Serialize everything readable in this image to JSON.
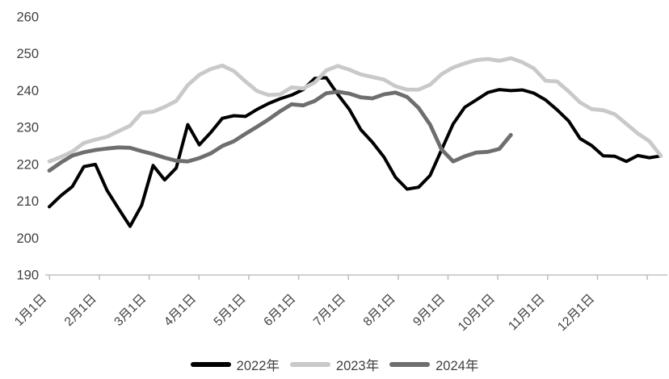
{
  "chart_data": {
    "type": "line",
    "title": "",
    "grid": false,
    "legend_position": "bottom",
    "ylim": [
      190,
      260
    ],
    "y_tick_step": 10,
    "y_tick_labels": [
      "260",
      "250",
      "240",
      "230",
      "220",
      "210",
      "200",
      "190"
    ],
    "x_tick_labels": [
      "1月1日",
      "2月1日",
      "3月1日",
      "4月1日",
      "5月1日",
      "6月1日",
      "7月1日",
      "8月1日",
      "9月1日",
      "10月1日",
      "11月1日",
      "12月1日"
    ],
    "axis_color": "#c0c0c0",
    "label_color": "#404040",
    "x_note": "weekly points, January through December",
    "series": [
      {
        "name": "2022年",
        "color": "#000000",
        "stroke_width": 4,
        "values": [
          208.5,
          211.5,
          214,
          219.4,
          220,
          213,
          208,
          203.2,
          208.9,
          219.7,
          215.8,
          219,
          230.8,
          225.3,
          228.7,
          232.5,
          233.2,
          233,
          234.9,
          236.5,
          237.8,
          238.8,
          240.3,
          243.3,
          243.5,
          239,
          234.9,
          229.4,
          226,
          222,
          216.5,
          213.3,
          213.8,
          217,
          224,
          231,
          235.5,
          237.5,
          239.5,
          240.3,
          240,
          240.2,
          239.3,
          237.5,
          234.8,
          231.8,
          227,
          225.1,
          222.3,
          222.2,
          220.8,
          222.4,
          221.8,
          222.3
        ]
      },
      {
        "name": "2023年",
        "color": "#c9c9c9",
        "stroke_width": 4.8,
        "values": [
          220.8,
          222,
          223.5,
          225.8,
          226.7,
          227.5,
          229,
          230.5,
          234,
          234.3,
          235.6,
          237.2,
          241.5,
          244.3,
          245.9,
          246.8,
          245.3,
          242.5,
          239.9,
          238.8,
          239,
          240.9,
          240.6,
          242.2,
          245.5,
          246.7,
          245.7,
          244.4,
          243.7,
          243,
          241.2,
          240.3,
          240.3,
          241.6,
          244.5,
          246.3,
          247.4,
          248.3,
          248.6,
          248.1,
          248.8,
          247.7,
          246,
          242.7,
          242.5,
          239.8,
          236.8,
          235,
          234.7,
          233.6,
          231,
          228.4,
          226.3,
          222.3
        ]
      },
      {
        "name": "2024年",
        "color": "#6e6e6e",
        "stroke_width": 4.8,
        "values": [
          218.3,
          220.5,
          222.4,
          223.3,
          223.9,
          224.3,
          224.6,
          224.5,
          223.6,
          222.8,
          221.8,
          221,
          220.8,
          221.7,
          223,
          225,
          226.3,
          228.3,
          230.2,
          232.2,
          234.4,
          236.3,
          236,
          237.2,
          239.3,
          239.7,
          239.2,
          238.2,
          237.9,
          239,
          239.5,
          238.3,
          235.3,
          230.8,
          224,
          220.8,
          222.2,
          223.2,
          223.4,
          224.2,
          228
        ]
      }
    ]
  }
}
